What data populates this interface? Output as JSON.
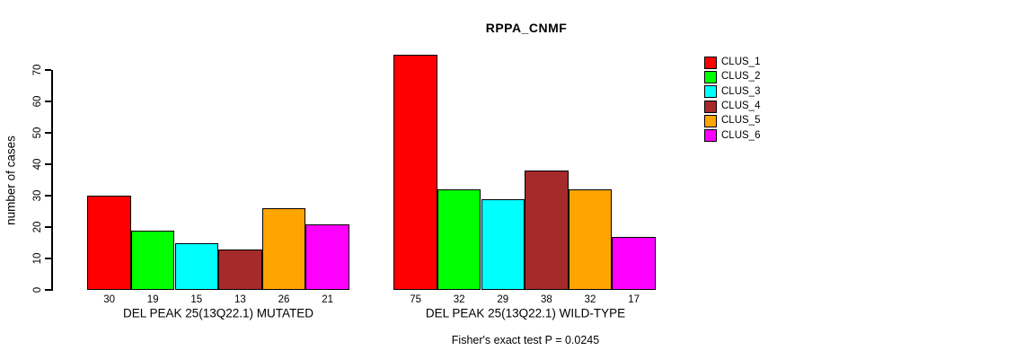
{
  "title": "RPPA_CNMF",
  "chart_data": {
    "type": "bar",
    "title": "RPPA_CNMF",
    "xlabel": "",
    "ylabel": "number of cases",
    "ylim": [
      0,
      78
    ],
    "yticks": [
      0,
      10,
      20,
      30,
      40,
      50,
      60,
      70
    ],
    "grid": false,
    "legend_position": "right-outside-top",
    "categories": [
      "CLUS_1",
      "CLUS_2",
      "CLUS_3",
      "CLUS_4",
      "CLUS_5",
      "CLUS_6"
    ],
    "colors": [
      "#ff0000",
      "#00ff00",
      "#00ffff",
      "#a52a2a",
      "#ffa500",
      "#ff00ff"
    ],
    "groups": [
      {
        "label": "DEL PEAK 25(13Q22.1) MUTATED",
        "values": [
          30,
          19,
          15,
          13,
          26,
          21
        ]
      },
      {
        "label": "DEL PEAK 25(13Q22.1) WILD-TYPE",
        "values": [
          75,
          32,
          29,
          38,
          32,
          17
        ]
      }
    ],
    "bar_value_labels_shown": true,
    "annotation": "Fisher's exact test P = 0.0245"
  }
}
